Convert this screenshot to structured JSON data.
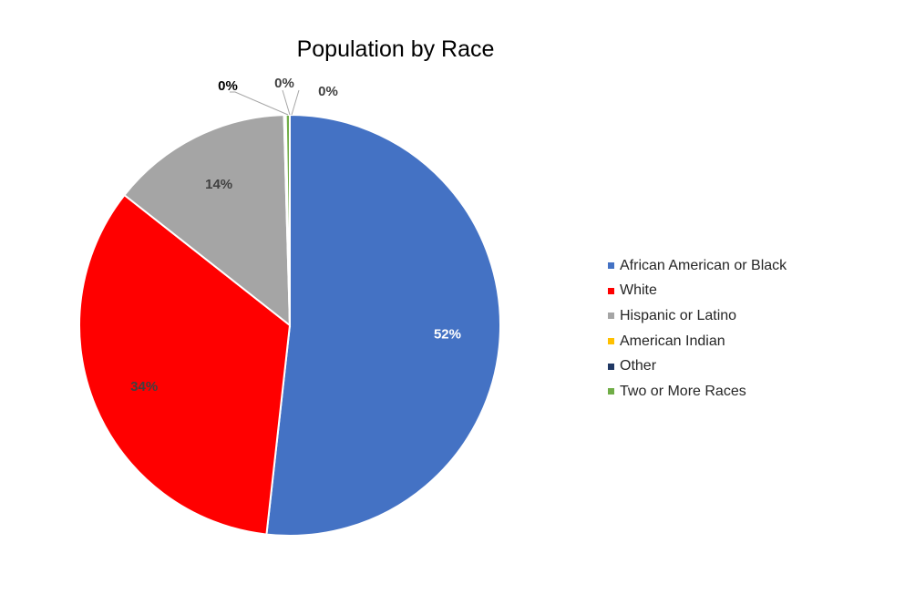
{
  "chart_data": {
    "type": "pie",
    "title": "Population by Race",
    "slices": [
      {
        "label": "African American or Black",
        "value": 52,
        "data_label": "52%",
        "color": "#4472C4",
        "label_color": "#FFFFFF"
      },
      {
        "label": "White",
        "value": 34,
        "data_label": "34%",
        "color": "#FF0000",
        "label_color": "#404040"
      },
      {
        "label": "Hispanic or Latino",
        "value": 14,
        "data_label": "14%",
        "color": "#A5A5A5",
        "label_color": "#404040"
      },
      {
        "label": "American Indian",
        "value": 0.1,
        "data_label": "0%",
        "color": "#FFC000",
        "label_color": "#000000"
      },
      {
        "label": "Other",
        "value": 0.05,
        "data_label": "0%",
        "color": "#203864",
        "label_color": "#404040"
      },
      {
        "label": "Two or More Races",
        "value": 0.3,
        "data_label": "0%",
        "color": "#70AD47",
        "label_color": "#404040"
      }
    ],
    "legend_position": "right",
    "start_angle_deg": 0,
    "direction": "clockwise"
  }
}
